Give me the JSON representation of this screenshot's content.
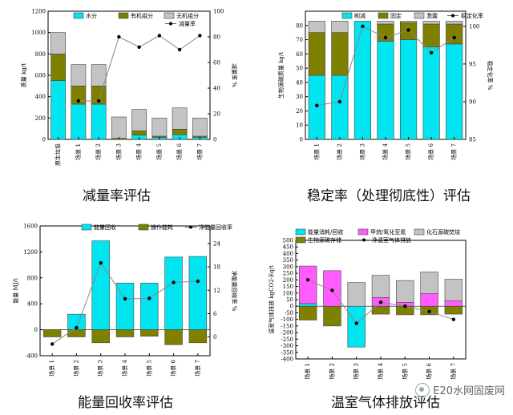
{
  "captions": [
    "减量率评估",
    "稳定率（处理彻底性）评估",
    "能量回收率评估",
    "温室气体排放评估"
  ],
  "watermark": "E20水网固废网",
  "chart_data": [
    {
      "type": "bar",
      "stacked": true,
      "categories": [
        "原生垃圾",
        "场景 1",
        "场景 2",
        "场景 3",
        "场景 4",
        "场景 5",
        "场景 6",
        "场景 7"
      ],
      "ylabel": "质量 kg/t",
      "ylim": [
        0,
        1200
      ],
      "yticks": [
        0,
        200,
        400,
        600,
        800,
        1000,
        1200
      ],
      "y2label": "减量率 %",
      "y2lim": [
        0,
        100
      ],
      "y2ticks": [
        0,
        20,
        40,
        60,
        80,
        100
      ],
      "legend_position": "top",
      "series": [
        {
          "name": "水分",
          "color": "#00e5ef",
          "values": [
            550,
            330,
            330,
            0,
            40,
            20,
            45,
            20
          ]
        },
        {
          "name": "有机组分",
          "color": "#7f7f00",
          "values": [
            250,
            170,
            170,
            10,
            40,
            10,
            50,
            10
          ]
        },
        {
          "name": "无机组分",
          "color": "#c3c3c3",
          "values": [
            200,
            200,
            200,
            200,
            200,
            170,
            200,
            170
          ]
        }
      ],
      "line": {
        "name": "减量率",
        "color": "#000000",
        "axis": "y2",
        "values": [
          null,
          30,
          30,
          80,
          72,
          81,
          70,
          81
        ]
      }
    },
    {
      "type": "bar",
      "stacked": true,
      "categories": [
        "场景 1",
        "场景 2",
        "场景 3",
        "场景 4",
        "场景 5",
        "场景 6",
        "场景 7"
      ],
      "ylabel": "生物源碳质量 kg/t",
      "ylim": [
        0,
        90
      ],
      "yticks": [
        0,
        10,
        20,
        30,
        40,
        50,
        60,
        70,
        80
      ],
      "y2label": "稳定化率 %",
      "y2lim": [
        85,
        102
      ],
      "y2ticks": [
        85,
        90,
        95,
        100
      ],
      "legend_position": "top",
      "series": [
        {
          "name": "削减",
          "color": "#00e5ef",
          "values": [
            45,
            45,
            83,
            69,
            70,
            65,
            67
          ]
        },
        {
          "name": "固定",
          "color": "#7f7f00",
          "values": [
            30,
            30,
            0,
            12,
            12,
            16,
            14
          ]
        },
        {
          "name": "激露",
          "color": "#c3c3c3",
          "values": [
            8,
            8,
            0,
            2,
            1,
            2,
            2
          ]
        }
      ],
      "line": {
        "name": "稳定化率",
        "color": "#000000",
        "axis": "y2",
        "values": [
          89.5,
          90,
          100,
          98.5,
          99.5,
          96.5,
          98.5
        ]
      }
    },
    {
      "type": "bar",
      "stacked": true,
      "categories": [
        "场景 1",
        "场景 2",
        "场景 3",
        "场景 4",
        "场景 5",
        "场景 6",
        "场景 7"
      ],
      "ylabel": "能量 MJ/t",
      "ylim": [
        -400,
        1600
      ],
      "yticks": [
        -400,
        0,
        400,
        800,
        1200,
        1600
      ],
      "yticks_labeled": [
        -400,
        0,
        400,
        800,
        1200,
        1600
      ],
      "y2label": "净能量回收率 %",
      "y2lim": [
        -4.8,
        28.5
      ],
      "y2ticks": [
        0,
        6,
        12,
        18,
        24
      ],
      "legend_position": "top",
      "series": [
        {
          "name": "能量回收",
          "color": "#00e5ef",
          "values": [
            0,
            240,
            1370,
            720,
            720,
            1120,
            1130
          ]
        },
        {
          "name": "操作能耗",
          "color": "#7f7f00",
          "values": [
            -110,
            -110,
            -200,
            -110,
            -100,
            -230,
            -200
          ]
        }
      ],
      "line": {
        "name": "净能量回收率",
        "color": "#000000",
        "axis": "y2",
        "values": [
          -1.8,
          2.4,
          19,
          9.8,
          9.9,
          14,
          14.3
        ]
      }
    },
    {
      "type": "bar",
      "stacked": true,
      "categories": [
        "场景 1",
        "场景 2",
        "场景 3",
        "场景 4",
        "场景 5",
        "场景 6",
        "场景 7"
      ],
      "ylabel": "温室气体排放 kgCO2-Eq/t",
      "ylim": [
        -400,
        500
      ],
      "yticks": [
        -400,
        -350,
        -300,
        -250,
        -200,
        -150,
        -100,
        -50,
        0,
        50,
        100,
        150,
        200,
        250,
        300,
        350,
        400,
        450,
        500
      ],
      "legend_position": "top",
      "series": [
        {
          "name": "能量消耗/回收",
          "color": "#00e5ef",
          "values": [
            20,
            0,
            -310,
            0,
            0,
            0,
            0
          ]
        },
        {
          "name": "甲烷/氧化亚氮",
          "color": "#ff5bff",
          "values": [
            285,
            270,
            0,
            65,
            30,
            95,
            40
          ]
        },
        {
          "name": "化石源碳焚烧",
          "color": "#c3c3c3",
          "values": [
            0,
            0,
            180,
            170,
            165,
            165,
            165
          ]
        },
        {
          "name": "生物源碳存储",
          "color": "#7f7f00",
          "values": [
            -105,
            -150,
            0,
            -60,
            -65,
            -65,
            -60
          ]
        }
      ],
      "line": {
        "name": "净温室气体排放",
        "color": "#000000",
        "values": [
          200,
          120,
          -130,
          30,
          0,
          -40,
          -100
        ]
      }
    }
  ]
}
